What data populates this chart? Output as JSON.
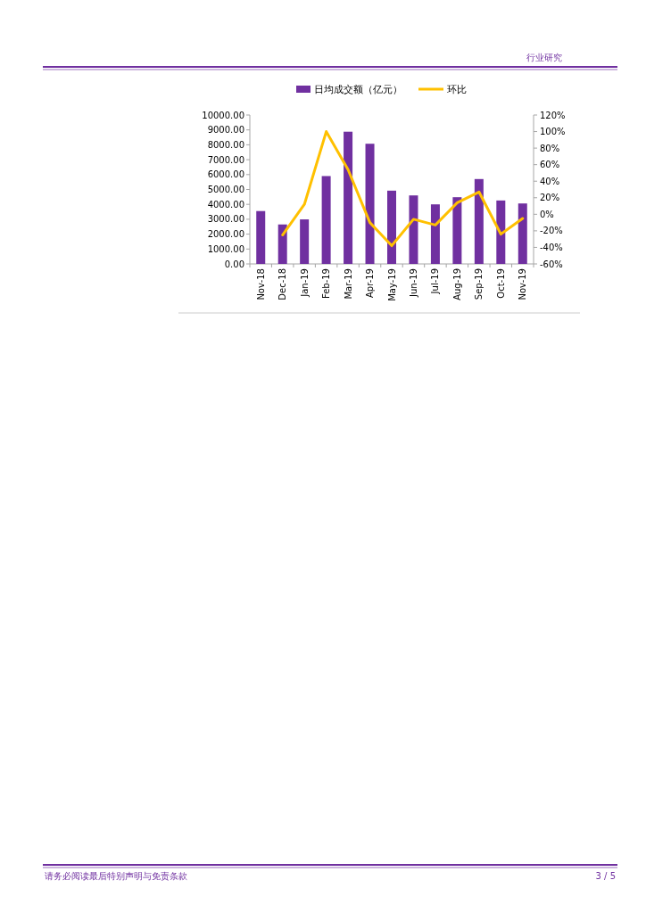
{
  "chart_data": {
    "type": "bar",
    "categories": [
      "Nov-18",
      "Dec-18",
      "Jan-19",
      "Feb-19",
      "Mar-19",
      "Apr-19",
      "May-19",
      "Jun-19",
      "Jul-19",
      "Aug-19",
      "Sep-19",
      "Oct-19",
      "Nov-19"
    ],
    "series": [
      {
        "name": "日均成交额（亿元）",
        "color": "#7030a0",
        "values": [
          3550,
          2650,
          2990,
          5900,
          8880,
          8070,
          4920,
          4600,
          4000,
          4480,
          5700,
          4260,
          4060
        ]
      },
      {
        "name": "环比",
        "type": "line",
        "axis": "y2",
        "color": "#ffc000",
        "values": [
          null,
          -25,
          12,
          100,
          54,
          -10,
          -38,
          -6,
          -13,
          14,
          27,
          -24,
          -5
        ]
      }
    ],
    "ylim": [
      0,
      10000
    ],
    "yticks": [
      {
        "value": 0,
        "label": "0.00"
      },
      {
        "value": 1000,
        "label": "1000.00"
      },
      {
        "value": 2000,
        "label": "2000.00"
      },
      {
        "value": 3000,
        "label": "3000.00"
      },
      {
        "value": 4000,
        "label": "4000.00"
      },
      {
        "value": 5000,
        "label": "5000.00"
      },
      {
        "value": 6000,
        "label": "6000.00"
      },
      {
        "value": 7000,
        "label": "7000.00"
      },
      {
        "value": 8000,
        "label": "8000.00"
      },
      {
        "value": 9000,
        "label": "9000.00"
      },
      {
        "value": 10000,
        "label": "10000.00"
      }
    ],
    "y2lim": [
      -60,
      120
    ],
    "y2ticks": [
      {
        "value": -60,
        "label": "-60%"
      },
      {
        "value": -40,
        "label": "-40%"
      },
      {
        "value": -20,
        "label": "-20%"
      },
      {
        "value": 0,
        "label": "0%"
      },
      {
        "value": 20,
        "label": "20%"
      },
      {
        "value": 40,
        "label": "40%"
      },
      {
        "value": 60,
        "label": "60%"
      },
      {
        "value": 80,
        "label": "80%"
      },
      {
        "value": 100,
        "label": "100%"
      },
      {
        "value": 120,
        "label": "120%"
      }
    ],
    "legend": "top",
    "annotations": [
      "行业研究",
      "请务必阅读最后特别声明与免责条款",
      "3 / 5"
    ]
  }
}
